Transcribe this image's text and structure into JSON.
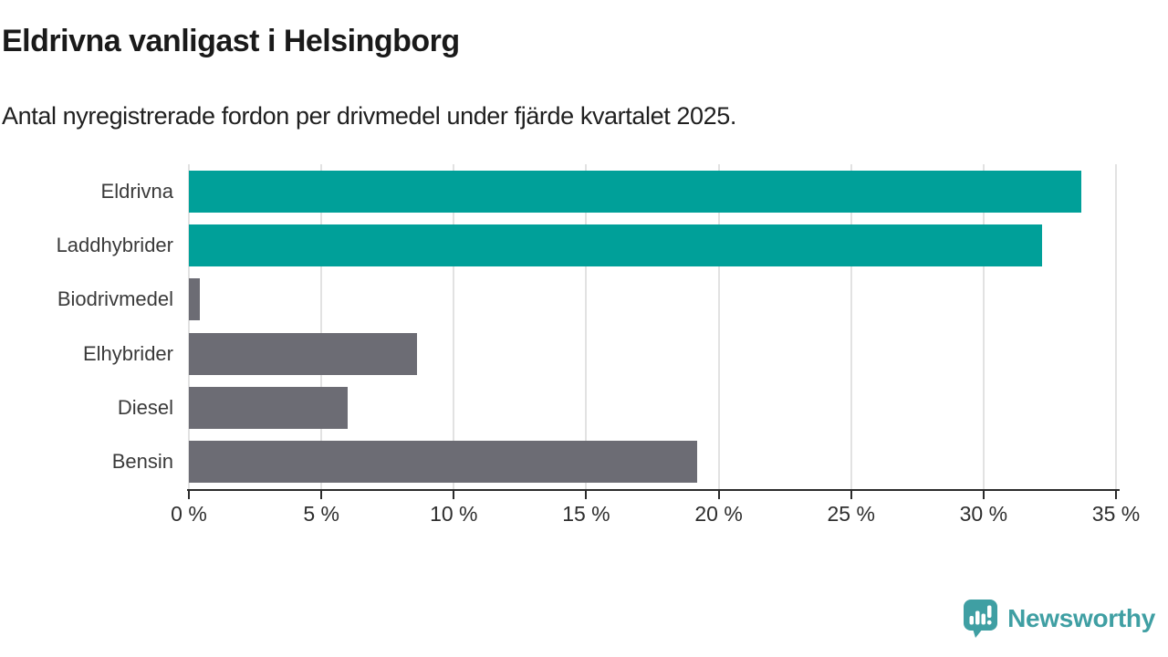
{
  "chart_data": {
    "type": "bar",
    "orientation": "horizontal",
    "title": "Eldrivna vanligast i Helsingborg",
    "subtitle": "Antal nyregistrerade fordon per drivmedel under fjärde kvartalet 2025.",
    "categories": [
      "Eldrivna",
      "Laddhybrider",
      "Biodrivmedel",
      "Elhybrider",
      "Diesel",
      "Bensin"
    ],
    "values": [
      33.7,
      32.2,
      0.4,
      8.6,
      6.0,
      19.2
    ],
    "highlighted": [
      true,
      true,
      false,
      false,
      false,
      false
    ],
    "xlabel": "",
    "ylabel": "",
    "xlim": [
      0,
      35
    ],
    "x_tick_values": [
      0,
      5,
      10,
      15,
      20,
      25,
      30,
      35
    ],
    "x_tick_labels": [
      "0 %",
      "5 %",
      "10 %",
      "15 %",
      "20 %",
      "25 %",
      "30 %",
      "35 %"
    ],
    "grid": "vertical",
    "legend": "none",
    "colors": {
      "highlight": "#00a099",
      "default": "#6c6c74",
      "gridline": "#e2e2e2",
      "axis": "#2b2b2b"
    }
  },
  "footer": {
    "logo_text": "Newsworthy",
    "logo_color": "#3f9fa3"
  }
}
